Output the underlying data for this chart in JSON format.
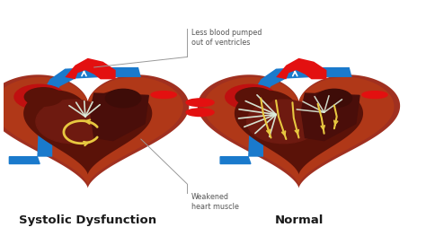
{
  "background_color": "#ffffff",
  "fig_width": 4.74,
  "fig_height": 2.63,
  "dpi": 100,
  "title_left": "Systolic Dysfunction",
  "title_right": "Normal",
  "title_fontsize": 9.5,
  "title_color": "#1a1a1a",
  "annotation1": "Less blood pumped\nout of ventricles",
  "annotation2": "Weakened\nheart muscle",
  "annotation_fontsize": 5.8,
  "annotation_color": "#555555",
  "red_bright": "#e31010",
  "red_mid": "#c01010",
  "red_dark": "#8b1a1a",
  "brown_outer": "#8b2a10",
  "brown_mid": "#7a1f0e",
  "brown_dark": "#4a0f0a",
  "brown_inner": "#3a0a08",
  "blue_bright": "#1a7acc",
  "blue_mid": "#1060aa",
  "gold": "#e8c840",
  "gold2": "#f0d050",
  "white_str": "#dde8dd",
  "gray_line": "#999999"
}
